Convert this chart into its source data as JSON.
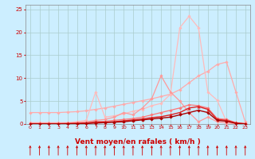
{
  "background_color": "#cceeff",
  "grid_color": "#aacccc",
  "xlim": [
    -0.5,
    23.5
  ],
  "ylim": [
    0,
    26
  ],
  "xticks": [
    0,
    1,
    2,
    3,
    4,
    5,
    6,
    7,
    8,
    9,
    10,
    11,
    12,
    13,
    14,
    15,
    16,
    17,
    18,
    19,
    20,
    21,
    22,
    23
  ],
  "yticks": [
    0,
    5,
    10,
    15,
    20,
    25
  ],
  "xlabel": "Vent moyen/en rafales ( km/h )",
  "xlabel_color": "#cc0000",
  "tick_color": "#cc0000",
  "lines": [
    {
      "x": [
        0,
        1,
        2,
        3,
        4,
        5,
        6,
        7,
        8,
        9,
        10,
        11,
        12,
        13,
        14,
        15,
        16,
        17,
        18,
        19,
        20,
        21,
        22,
        23
      ],
      "y": [
        2.5,
        2.5,
        2.5,
        2.5,
        2.6,
        2.7,
        2.9,
        3.2,
        3.5,
        3.9,
        4.3,
        4.7,
        5.1,
        5.5,
        6.0,
        6.5,
        7.5,
        9.0,
        10.5,
        11.5,
        13.0,
        13.5,
        7.0,
        0.5
      ],
      "color": "#ffaaaa",
      "lw": 0.9,
      "marker": "D",
      "ms": 1.8
    },
    {
      "x": [
        0,
        1,
        2,
        3,
        4,
        5,
        6,
        7,
        8,
        9,
        10,
        11,
        12,
        13,
        14,
        15,
        16,
        17,
        18,
        19,
        20,
        21,
        22,
        23
      ],
      "y": [
        0.3,
        0.3,
        0.3,
        0.3,
        0.3,
        0.5,
        0.8,
        7.0,
        1.5,
        1.8,
        2.2,
        2.8,
        3.2,
        4.0,
        4.5,
        6.5,
        21.0,
        23.5,
        21.0,
        7.0,
        5.2,
        0.5,
        0.3,
        0.1
      ],
      "color": "#ffbbbb",
      "lw": 0.9,
      "marker": "D",
      "ms": 1.8
    },
    {
      "x": [
        0,
        1,
        2,
        3,
        4,
        5,
        6,
        7,
        8,
        9,
        10,
        11,
        12,
        13,
        14,
        15,
        16,
        17,
        18,
        19,
        20,
        21,
        22,
        23
      ],
      "y": [
        0.2,
        0.2,
        0.2,
        0.2,
        0.2,
        0.3,
        0.5,
        0.8,
        1.0,
        1.5,
        2.5,
        2.0,
        3.5,
        5.5,
        10.5,
        7.0,
        5.0,
        2.5,
        0.5,
        1.5,
        0.5,
        0.2,
        0.1,
        0.05
      ],
      "color": "#ff9999",
      "lw": 0.9,
      "marker": "D",
      "ms": 1.8
    },
    {
      "x": [
        0,
        1,
        2,
        3,
        4,
        5,
        6,
        7,
        8,
        9,
        10,
        11,
        12,
        13,
        14,
        15,
        16,
        17,
        18,
        19,
        20,
        21,
        22,
        23
      ],
      "y": [
        0.1,
        0.1,
        0.1,
        0.1,
        0.1,
        0.15,
        0.25,
        0.4,
        0.6,
        0.8,
        1.0,
        1.2,
        1.5,
        2.0,
        2.5,
        3.0,
        3.5,
        4.2,
        4.0,
        3.5,
        1.2,
        1.0,
        0.3,
        0.1
      ],
      "color": "#ff7777",
      "lw": 0.9,
      "marker": "D",
      "ms": 1.8
    },
    {
      "x": [
        0,
        1,
        2,
        3,
        4,
        5,
        6,
        7,
        8,
        9,
        10,
        11,
        12,
        13,
        14,
        15,
        16,
        17,
        18,
        19,
        20,
        21,
        22,
        23
      ],
      "y": [
        0.05,
        0.05,
        0.05,
        0.05,
        0.1,
        0.15,
        0.2,
        0.5,
        0.4,
        0.5,
        0.7,
        0.9,
        1.1,
        1.4,
        1.6,
        2.0,
        2.5,
        3.5,
        3.8,
        3.2,
        1.0,
        0.8,
        0.2,
        0.05
      ],
      "color": "#dd2222",
      "lw": 1.0,
      "marker": "^",
      "ms": 2.5
    },
    {
      "x": [
        0,
        1,
        2,
        3,
        4,
        5,
        6,
        7,
        8,
        9,
        10,
        11,
        12,
        13,
        14,
        15,
        16,
        17,
        18,
        19,
        20,
        21,
        22,
        23
      ],
      "y": [
        0.02,
        0.02,
        0.02,
        0.02,
        0.05,
        0.08,
        0.1,
        0.2,
        0.3,
        0.4,
        0.5,
        0.7,
        0.9,
        1.1,
        1.3,
        1.5,
        2.0,
        2.5,
        3.0,
        2.5,
        0.8,
        0.6,
        0.15,
        0.02
      ],
      "color": "#aa0000",
      "lw": 1.0,
      "marker": "D",
      "ms": 1.8
    }
  ]
}
